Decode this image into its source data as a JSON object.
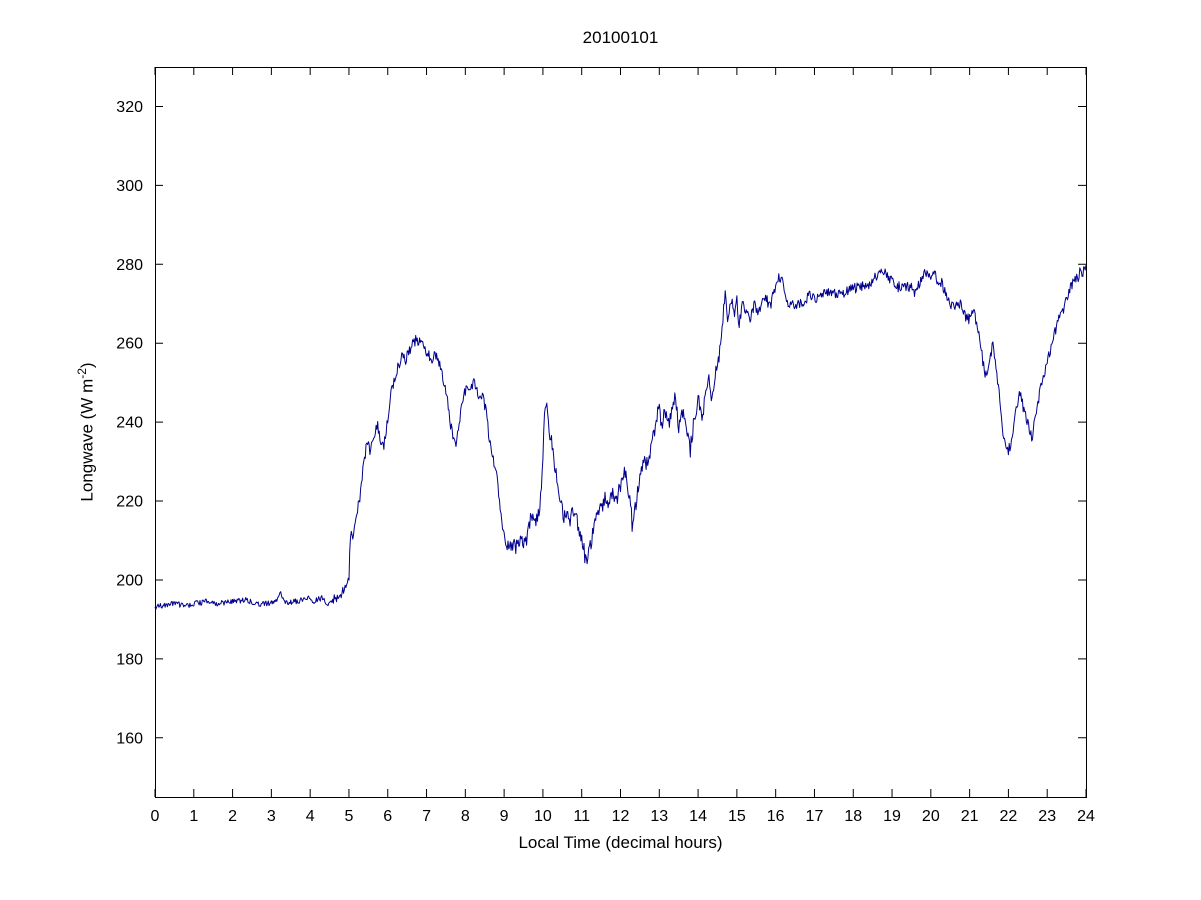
{
  "figure": {
    "title": "20100101",
    "x_label": "Local Time (decimal hours)",
    "y_label_main": "Longwave (W m",
    "y_label_sup": "-2",
    "y_label_end": ")"
  },
  "chart_data": {
    "type": "line",
    "title": "20100101",
    "xlabel": "Local Time (decimal hours)",
    "ylabel": "Longwave (W m^-2)",
    "xlim": [
      0,
      24
    ],
    "ylim": [
      145,
      330
    ],
    "x_ticks": [
      0,
      1,
      2,
      3,
      4,
      5,
      6,
      7,
      8,
      9,
      10,
      11,
      12,
      13,
      14,
      15,
      16,
      17,
      18,
      19,
      20,
      21,
      22,
      23,
      24
    ],
    "y_ticks": [
      160,
      180,
      200,
      220,
      240,
      260,
      280,
      300,
      320
    ],
    "grid": false,
    "legend": "none",
    "line_color": "#00008B",
    "background": "#ffffff",
    "noise": {
      "flat_until": 4.55,
      "flat_amp": 0.7,
      "mid_amp": 1.4,
      "busy_from": 9.0,
      "busy_to": 14.5,
      "busy_amp": 1.9
    },
    "series": [
      {
        "name": "longwave",
        "points": [
          [
            0,
            193
          ],
          [
            0.2,
            193.5
          ],
          [
            0.5,
            194
          ],
          [
            0.8,
            193.5
          ],
          [
            1,
            194
          ],
          [
            1.3,
            194.5
          ],
          [
            1.6,
            194
          ],
          [
            2,
            194.5
          ],
          [
            2.3,
            195
          ],
          [
            2.6,
            194
          ],
          [
            2.9,
            194
          ],
          [
            3.1,
            194.5
          ],
          [
            3.25,
            196.5
          ],
          [
            3.4,
            194
          ],
          [
            3.6,
            194.5
          ],
          [
            3.8,
            195
          ],
          [
            4,
            195.5
          ],
          [
            4.1,
            194.5
          ],
          [
            4.3,
            195.5
          ],
          [
            4.45,
            194
          ],
          [
            4.6,
            195
          ],
          [
            4.75,
            196
          ],
          [
            4.9,
            198
          ],
          [
            5,
            201
          ],
          [
            5.05,
            214
          ],
          [
            5.1,
            211
          ],
          [
            5.15,
            213
          ],
          [
            5.2,
            217
          ],
          [
            5.3,
            222
          ],
          [
            5.4,
            231
          ],
          [
            5.5,
            236
          ],
          [
            5.55,
            232
          ],
          [
            5.65,
            237
          ],
          [
            5.75,
            239
          ],
          [
            5.8,
            235
          ],
          [
            5.9,
            234
          ],
          [
            6,
            241
          ],
          [
            6.1,
            248
          ],
          [
            6.2,
            252
          ],
          [
            6.3,
            255
          ],
          [
            6.4,
            257
          ],
          [
            6.45,
            255
          ],
          [
            6.55,
            258
          ],
          [
            6.65,
            260
          ],
          [
            6.75,
            261
          ],
          [
            6.85,
            260
          ],
          [
            6.95,
            259
          ],
          [
            7.05,
            257
          ],
          [
            7.15,
            256
          ],
          [
            7.25,
            257
          ],
          [
            7.35,
            254
          ],
          [
            7.45,
            250
          ],
          [
            7.55,
            245
          ],
          [
            7.6,
            240
          ],
          [
            7.7,
            236
          ],
          [
            7.75,
            234
          ],
          [
            7.85,
            240
          ],
          [
            7.95,
            247
          ],
          [
            8.05,
            249
          ],
          [
            8.15,
            249
          ],
          [
            8.25,
            250
          ],
          [
            8.35,
            247
          ],
          [
            8.45,
            246
          ],
          [
            8.55,
            243
          ],
          [
            8.6,
            237
          ],
          [
            8.7,
            231
          ],
          [
            8.8,
            228
          ],
          [
            8.85,
            222
          ],
          [
            8.95,
            213
          ],
          [
            9.05,
            210
          ],
          [
            9.1,
            208
          ],
          [
            9.2,
            209
          ],
          [
            9.3,
            208
          ],
          [
            9.4,
            210
          ],
          [
            9.5,
            209
          ],
          [
            9.6,
            211
          ],
          [
            9.65,
            214
          ],
          [
            9.7,
            217
          ],
          [
            9.8,
            214
          ],
          [
            9.9,
            217
          ],
          [
            9.95,
            222
          ],
          [
            10,
            231
          ],
          [
            10.05,
            243
          ],
          [
            10.1,
            246
          ],
          [
            10.15,
            239
          ],
          [
            10.25,
            233
          ],
          [
            10.35,
            226
          ],
          [
            10.45,
            220
          ],
          [
            10.55,
            216
          ],
          [
            10.65,
            217
          ],
          [
            10.7,
            215
          ],
          [
            10.8,
            218
          ],
          [
            10.9,
            214
          ],
          [
            11,
            211
          ],
          [
            11.05,
            208
          ],
          [
            11.1,
            205
          ],
          [
            11.2,
            207
          ],
          [
            11.3,
            213
          ],
          [
            11.4,
            216
          ],
          [
            11.5,
            218
          ],
          [
            11.6,
            221
          ],
          [
            11.7,
            219
          ],
          [
            11.8,
            222
          ],
          [
            11.9,
            220
          ],
          [
            12,
            224
          ],
          [
            12.1,
            228
          ],
          [
            12.15,
            226
          ],
          [
            12.25,
            220
          ],
          [
            12.3,
            214
          ],
          [
            12.4,
            219
          ],
          [
            12.5,
            227
          ],
          [
            12.6,
            231
          ],
          [
            12.7,
            229
          ],
          [
            12.8,
            234
          ],
          [
            12.9,
            239
          ],
          [
            13,
            245
          ],
          [
            13.05,
            238
          ],
          [
            13.15,
            243
          ],
          [
            13.25,
            240
          ],
          [
            13.35,
            244
          ],
          [
            13.4,
            247
          ],
          [
            13.5,
            239
          ],
          [
            13.6,
            243
          ],
          [
            13.7,
            237
          ],
          [
            13.8,
            233
          ],
          [
            13.9,
            241
          ],
          [
            14,
            246
          ],
          [
            14.1,
            240
          ],
          [
            14.2,
            249
          ],
          [
            14.3,
            251
          ],
          [
            14.35,
            244
          ],
          [
            14.45,
            253
          ],
          [
            14.55,
            257
          ],
          [
            14.6,
            262
          ],
          [
            14.7,
            273
          ],
          [
            14.75,
            266
          ],
          [
            14.85,
            271
          ],
          [
            14.95,
            267
          ],
          [
            15,
            272
          ],
          [
            15.05,
            264
          ],
          [
            15.15,
            270
          ],
          [
            15.25,
            267
          ],
          [
            15.35,
            266
          ],
          [
            15.45,
            270
          ],
          [
            15.55,
            268
          ],
          [
            15.65,
            270
          ],
          [
            15.75,
            272
          ],
          [
            15.85,
            269
          ],
          [
            15.95,
            273
          ],
          [
            16.05,
            276
          ],
          [
            16.15,
            277
          ],
          [
            16.25,
            272
          ],
          [
            16.35,
            269
          ],
          [
            16.45,
            270
          ],
          [
            16.55,
            269
          ],
          [
            16.65,
            271
          ],
          [
            16.75,
            270
          ],
          [
            16.85,
            272
          ],
          [
            17,
            271
          ],
          [
            17.2,
            272
          ],
          [
            17.4,
            273
          ],
          [
            17.6,
            272
          ],
          [
            17.8,
            273
          ],
          [
            18,
            274
          ],
          [
            18.2,
            274
          ],
          [
            18.4,
            275
          ],
          [
            18.6,
            277
          ],
          [
            18.8,
            278
          ],
          [
            18.9,
            277
          ],
          [
            19,
            276
          ],
          [
            19.1,
            274
          ],
          [
            19.3,
            275
          ],
          [
            19.5,
            274
          ],
          [
            19.6,
            273
          ],
          [
            19.8,
            277
          ],
          [
            19.9,
            278
          ],
          [
            20,
            277
          ],
          [
            20.1,
            277
          ],
          [
            20.3,
            275
          ],
          [
            20.45,
            271
          ],
          [
            20.6,
            269
          ],
          [
            20.75,
            270
          ],
          [
            20.9,
            267
          ],
          [
            21,
            266
          ],
          [
            21.1,
            268
          ],
          [
            21.2,
            264
          ],
          [
            21.3,
            258
          ],
          [
            21.4,
            252
          ],
          [
            21.5,
            255
          ],
          [
            21.6,
            260
          ],
          [
            21.65,
            256
          ],
          [
            21.75,
            248
          ],
          [
            21.85,
            238
          ],
          [
            21.95,
            232
          ],
          [
            22.05,
            234
          ],
          [
            22.15,
            240
          ],
          [
            22.25,
            246
          ],
          [
            22.3,
            247
          ],
          [
            22.4,
            243
          ],
          [
            22.5,
            240
          ],
          [
            22.6,
            236
          ],
          [
            22.7,
            241
          ],
          [
            22.8,
            247
          ],
          [
            22.9,
            251
          ],
          [
            23,
            255
          ],
          [
            23.1,
            259
          ],
          [
            23.2,
            263
          ],
          [
            23.3,
            266
          ],
          [
            23.4,
            268
          ],
          [
            23.5,
            271
          ],
          [
            23.6,
            274
          ],
          [
            23.7,
            276
          ],
          [
            23.8,
            277
          ],
          [
            23.85,
            279
          ],
          [
            23.9,
            278
          ],
          [
            24,
            279
          ]
        ]
      }
    ]
  }
}
